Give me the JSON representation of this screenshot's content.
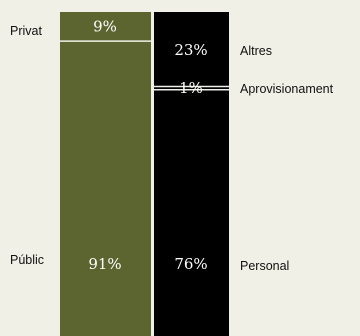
{
  "chart_data": {
    "type": "bar",
    "stacked": true,
    "normalized_to_100": true,
    "colors": {
      "background": "#f0f0e6",
      "left_fill": "#5c6530",
      "right_fill": "#000000",
      "text_light": "#ffffff",
      "divider": "#f0f0e6"
    },
    "bars": [
      {
        "segments": [
          {
            "label": "Privat",
            "value": 9,
            "value_label": "9%"
          },
          {
            "label": "Públic",
            "value": 91,
            "value_label": "91%"
          }
        ]
      },
      {
        "segments": [
          {
            "label": "Altres",
            "value": 23,
            "value_label": "23%"
          },
          {
            "label": "Aprovisionament",
            "value": 1,
            "value_label": "1%"
          },
          {
            "label": "Personal",
            "value": 76,
            "value_label": "76%"
          }
        ]
      }
    ]
  }
}
